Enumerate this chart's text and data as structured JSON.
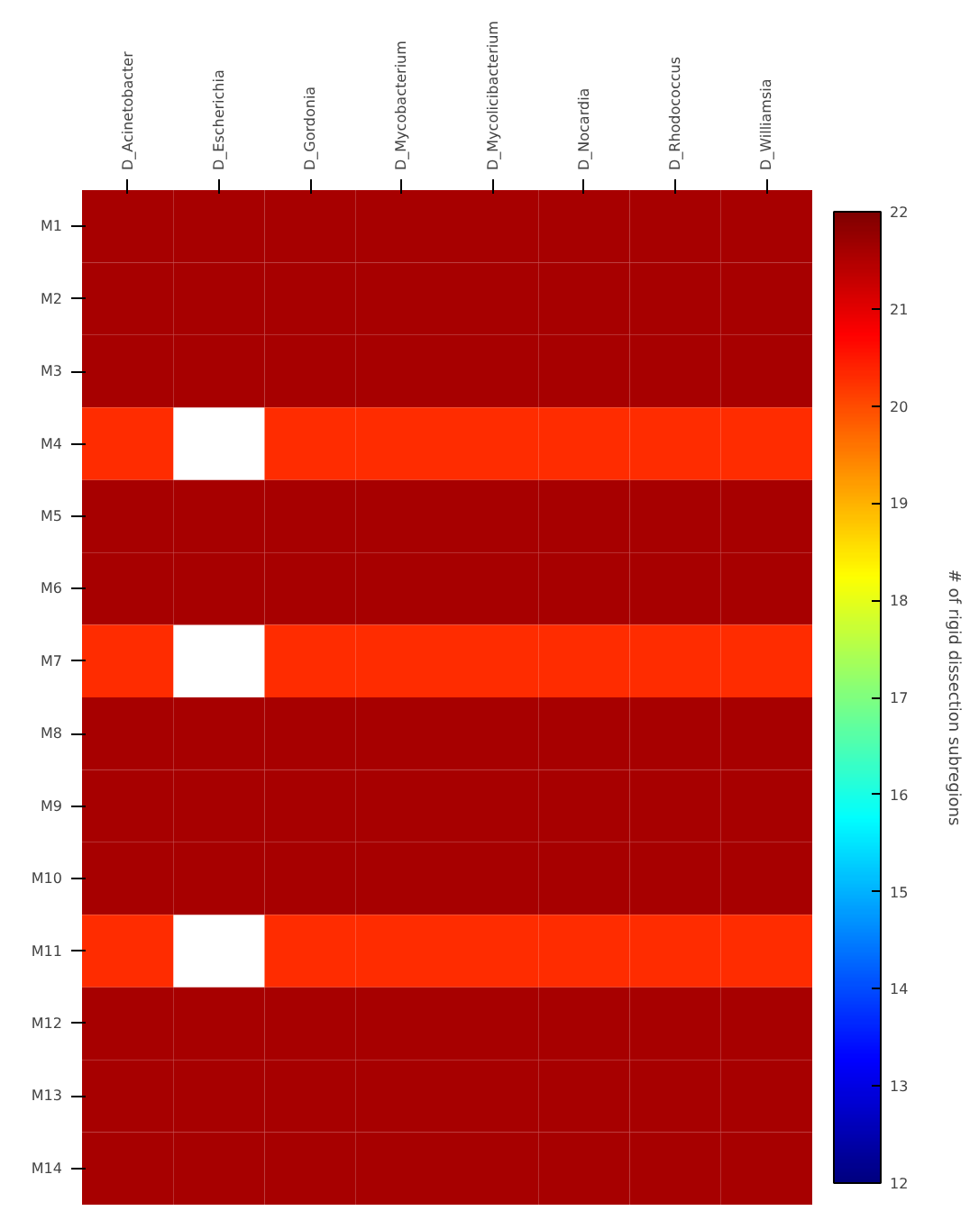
{
  "chart_data": {
    "type": "heatmap",
    "categories": [
      "D_Acinetobacter",
      "D_Escherichia",
      "D_Gordonia",
      "D_Mycobacterium",
      "D_Mycolicibacterium",
      "D_Nocardia",
      "D_Rhodococcus",
      "D_Williamsia"
    ],
    "y_categories": [
      "M1",
      "M2",
      "M3",
      "M4",
      "M5",
      "M6",
      "M7",
      "M8",
      "M9",
      "M10",
      "M11",
      "M12",
      "M13",
      "M14"
    ],
    "cells": [
      [
        21.6,
        21.6,
        21.6,
        21.6,
        21.6,
        21.6,
        21.6,
        21.6
      ],
      [
        21.6,
        21.6,
        21.6,
        21.6,
        21.6,
        21.6,
        21.6,
        21.6
      ],
      [
        21.6,
        21.6,
        21.6,
        21.6,
        21.6,
        21.6,
        21.6,
        21.6
      ],
      [
        20.3,
        null,
        20.3,
        20.3,
        20.3,
        20.3,
        20.3,
        20.3
      ],
      [
        21.6,
        21.6,
        21.6,
        21.6,
        21.6,
        21.6,
        21.6,
        21.6
      ],
      [
        21.6,
        21.6,
        21.6,
        21.6,
        21.6,
        21.6,
        21.6,
        21.6
      ],
      [
        20.3,
        null,
        20.3,
        20.3,
        20.3,
        20.3,
        20.3,
        20.3
      ],
      [
        21.6,
        21.6,
        21.6,
        21.6,
        21.6,
        21.6,
        21.6,
        21.6
      ],
      [
        21.6,
        21.6,
        21.6,
        21.6,
        21.6,
        21.6,
        21.6,
        21.6
      ],
      [
        21.6,
        21.6,
        21.6,
        21.6,
        21.6,
        21.6,
        21.6,
        21.6
      ],
      [
        20.3,
        null,
        20.3,
        20.3,
        20.3,
        20.3,
        20.3,
        20.3
      ],
      [
        21.6,
        21.6,
        21.6,
        21.6,
        21.6,
        21.6,
        21.6,
        21.6
      ],
      [
        21.6,
        21.6,
        21.6,
        21.6,
        21.6,
        21.6,
        21.6,
        21.6
      ],
      [
        21.6,
        21.6,
        21.6,
        21.6,
        21.6,
        21.6,
        21.6,
        21.6
      ]
    ],
    "clim": [
      12,
      22
    ],
    "cticks": [
      12,
      13,
      14,
      15,
      16,
      17,
      18,
      19,
      20,
      21,
      22
    ],
    "clabel": "# of rigid dissection subregions"
  }
}
